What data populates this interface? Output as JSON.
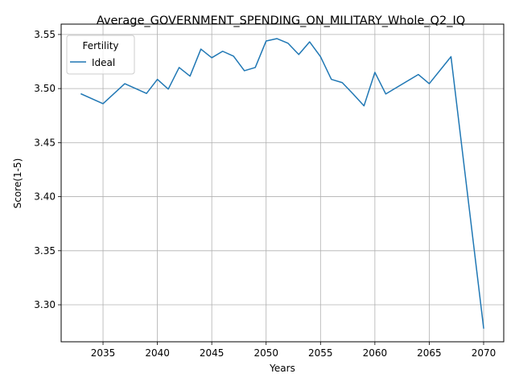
{
  "chart_data": {
    "type": "line",
    "title": "Average_GOVERNMENT_SPENDING_ON_MILITARY_Whole_Q2_IQ",
    "xlabel": "Years",
    "ylabel": "Score(1-5)",
    "xlim": [
      2031.15,
      2071.85
    ],
    "ylim": [
      3.2658,
      3.5596
    ],
    "xticks": [
      2035,
      2040,
      2045,
      2050,
      2055,
      2060,
      2065,
      2070
    ],
    "yticks": [
      3.3,
      3.35,
      3.4,
      3.45,
      3.5,
      3.55
    ],
    "grid": true,
    "legend": {
      "title": "Fertility",
      "position": "top-left"
    },
    "series": [
      {
        "name": "Ideal",
        "color": "#1f77b4",
        "x": [
          2033,
          2035,
          2037,
          2039,
          2040,
          2041,
          2042,
          2043,
          2044,
          2045,
          2046,
          2047,
          2048,
          2049,
          2050,
          2051,
          2052,
          2053,
          2054,
          2055,
          2056,
          2057,
          2058,
          2059,
          2060,
          2061,
          2064,
          2065,
          2067,
          2070
        ],
        "y": [
          3.495,
          3.486,
          3.5045,
          3.4955,
          3.5085,
          3.4995,
          3.5195,
          3.5115,
          3.5365,
          3.5285,
          3.5345,
          3.53,
          3.5165,
          3.5195,
          3.544,
          3.5462,
          3.542,
          3.5315,
          3.5432,
          3.5295,
          3.5085,
          3.5055,
          3.495,
          3.484,
          3.515,
          3.495,
          3.513,
          3.5045,
          3.5295,
          3.2785
        ]
      }
    ]
  }
}
